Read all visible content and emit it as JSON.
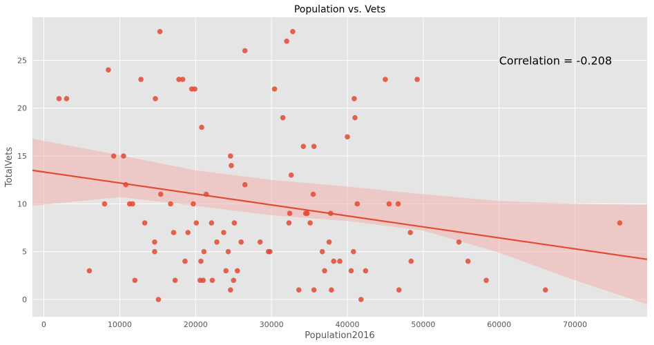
{
  "chart_data": {
    "type": "scatter",
    "title": "Population vs. Vets",
    "xlabel": "Population2016",
    "ylabel": "TotalVets",
    "xlim": [
      -1500,
      79500
    ],
    "ylim": [
      -1.8,
      29.5
    ],
    "xticks": [
      0,
      10000,
      20000,
      30000,
      40000,
      50000,
      60000,
      70000
    ],
    "yticks": [
      0,
      5,
      10,
      15,
      20,
      25
    ],
    "grid": true,
    "annotation": {
      "text": "Correlation = -0.208",
      "x": 60000,
      "y": 25
    },
    "regression": {
      "x": [
        -1500,
        79500
      ],
      "y": [
        13.5,
        4.2
      ],
      "band_x": [
        -1500,
        10000,
        20000,
        30000,
        40000,
        50000,
        60000,
        70000,
        79500
      ],
      "band_upper": [
        16.8,
        15.1,
        13.5,
        12.5,
        11.8,
        11.0,
        10.3,
        10.0,
        9.9
      ],
      "band_lower": [
        9.8,
        10.7,
        9.8,
        8.8,
        8.2,
        7.2,
        4.9,
        2.0,
        -0.5
      ]
    },
    "colors": {
      "background": "#e5e5e5",
      "grid": "#ffffff",
      "points": "#e24a33",
      "line": "#e24a33",
      "band": "#f2b3ad"
    },
    "points": [
      [
        2000,
        21
      ],
      [
        3000,
        21
      ],
      [
        6000,
        3
      ],
      [
        8000,
        10
      ],
      [
        8500,
        24
      ],
      [
        9200,
        15
      ],
      [
        10500,
        15
      ],
      [
        10800,
        12
      ],
      [
        11300,
        10
      ],
      [
        11700,
        10
      ],
      [
        12000,
        2
      ],
      [
        12800,
        23
      ],
      [
        13300,
        8
      ],
      [
        14600,
        5
      ],
      [
        14600,
        6
      ],
      [
        14700,
        21
      ],
      [
        15100,
        0
      ],
      [
        15300,
        28
      ],
      [
        15400,
        11
      ],
      [
        16700,
        10
      ],
      [
        17100,
        7
      ],
      [
        17300,
        2
      ],
      [
        17800,
        23
      ],
      [
        18300,
        23
      ],
      [
        18600,
        4
      ],
      [
        19000,
        7
      ],
      [
        19500,
        22
      ],
      [
        19700,
        10
      ],
      [
        19900,
        22
      ],
      [
        20100,
        8
      ],
      [
        20600,
        2
      ],
      [
        20700,
        4
      ],
      [
        20800,
        18
      ],
      [
        21000,
        2
      ],
      [
        21100,
        5
      ],
      [
        21400,
        11
      ],
      [
        22100,
        8
      ],
      [
        22200,
        2
      ],
      [
        22800,
        6
      ],
      [
        23700,
        7
      ],
      [
        24000,
        3
      ],
      [
        24300,
        5
      ],
      [
        24600,
        1
      ],
      [
        24600,
        15
      ],
      [
        24700,
        14
      ],
      [
        25000,
        2
      ],
      [
        25100,
        8
      ],
      [
        25500,
        3
      ],
      [
        26000,
        6
      ],
      [
        26500,
        12
      ],
      [
        26500,
        26
      ],
      [
        28500,
        6
      ],
      [
        29600,
        5
      ],
      [
        29800,
        5
      ],
      [
        30400,
        22
      ],
      [
        31500,
        19
      ],
      [
        32000,
        27
      ],
      [
        32300,
        8
      ],
      [
        32400,
        9
      ],
      [
        32600,
        13
      ],
      [
        32800,
        28
      ],
      [
        33600,
        1
      ],
      [
        34200,
        16
      ],
      [
        34500,
        9
      ],
      [
        34700,
        9
      ],
      [
        35100,
        8
      ],
      [
        35500,
        11
      ],
      [
        35600,
        16
      ],
      [
        35600,
        1
      ],
      [
        36700,
        5
      ],
      [
        37000,
        3
      ],
      [
        37600,
        6
      ],
      [
        37800,
        9
      ],
      [
        37900,
        1
      ],
      [
        38200,
        4
      ],
      [
        39000,
        4
      ],
      [
        40000,
        17
      ],
      [
        40500,
        3
      ],
      [
        40800,
        5
      ],
      [
        40900,
        21
      ],
      [
        41000,
        19
      ],
      [
        41300,
        10
      ],
      [
        41800,
        0
      ],
      [
        42400,
        3
      ],
      [
        45000,
        23
      ],
      [
        45500,
        10
      ],
      [
        46700,
        10
      ],
      [
        46800,
        1
      ],
      [
        48300,
        7
      ],
      [
        48400,
        4
      ],
      [
        49200,
        23
      ],
      [
        54700,
        6
      ],
      [
        55900,
        4
      ],
      [
        58300,
        2
      ],
      [
        66100,
        1
      ],
      [
        75900,
        8
      ]
    ]
  }
}
